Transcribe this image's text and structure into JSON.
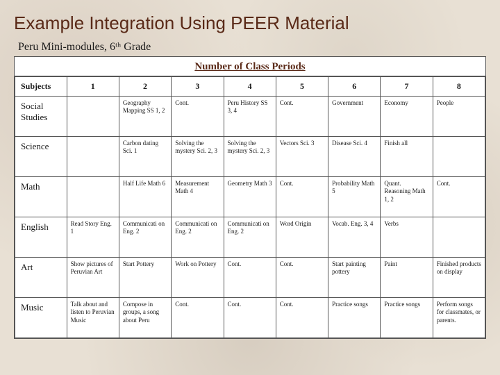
{
  "title": "Example Integration Using PEER Material",
  "subtitle": "Peru Mini-modules, 6ᵗʰ Grade",
  "periods_header": "Number of  Class Periods",
  "columns": [
    "Subjects",
    "1",
    "2",
    "3",
    "4",
    "5",
    "6",
    "7",
    "8"
  ],
  "rows": [
    {
      "subject": "Social Studies",
      "cells": [
        "",
        "Geography Mapping SS 1, 2",
        "Cont.",
        "Peru History SS 3, 4",
        "Cont.",
        "Government",
        "Economy",
        "People"
      ]
    },
    {
      "subject": "Science",
      "cells": [
        "",
        "Carbon dating Sci. 1",
        "Solving the mystery Sci. 2, 3",
        "Solving the mystery Sci. 2, 3",
        "Vectors Sci. 3",
        "Disease Sci. 4",
        "Finish all",
        ""
      ]
    },
    {
      "subject": "Math",
      "cells": [
        "",
        "Half Life Math 6",
        "Measurement Math 4",
        "Geometry Math 3",
        "Cont.",
        "Probability Math 5",
        "Quant. Reasoning Math 1, 2",
        "Cont."
      ]
    },
    {
      "subject": "English",
      "cells": [
        "Read Story Eng. 1",
        "Communicati on Eng. 2",
        "Communicati on Eng. 2",
        "Communicati on Eng. 2",
        "Word Origin",
        "Vocab. Eng. 3, 4",
        "Verbs",
        ""
      ]
    },
    {
      "subject": "Art",
      "cells": [
        "Show pictures of Peruvian Art",
        "Start Pottery",
        "Work on Pottery",
        "Cont.",
        "Cont.",
        "Start painting pottery",
        "Paint",
        "Finished products on display"
      ]
    },
    {
      "subject": "Music",
      "cells": [
        "Talk about and listen to Peruvian Music",
        "Compose in groups, a song about Peru",
        "Cont.",
        "Cont.",
        "Cont.",
        "Practice songs",
        "Practice songs",
        "Perform songs for classmates, or parents."
      ]
    }
  ]
}
